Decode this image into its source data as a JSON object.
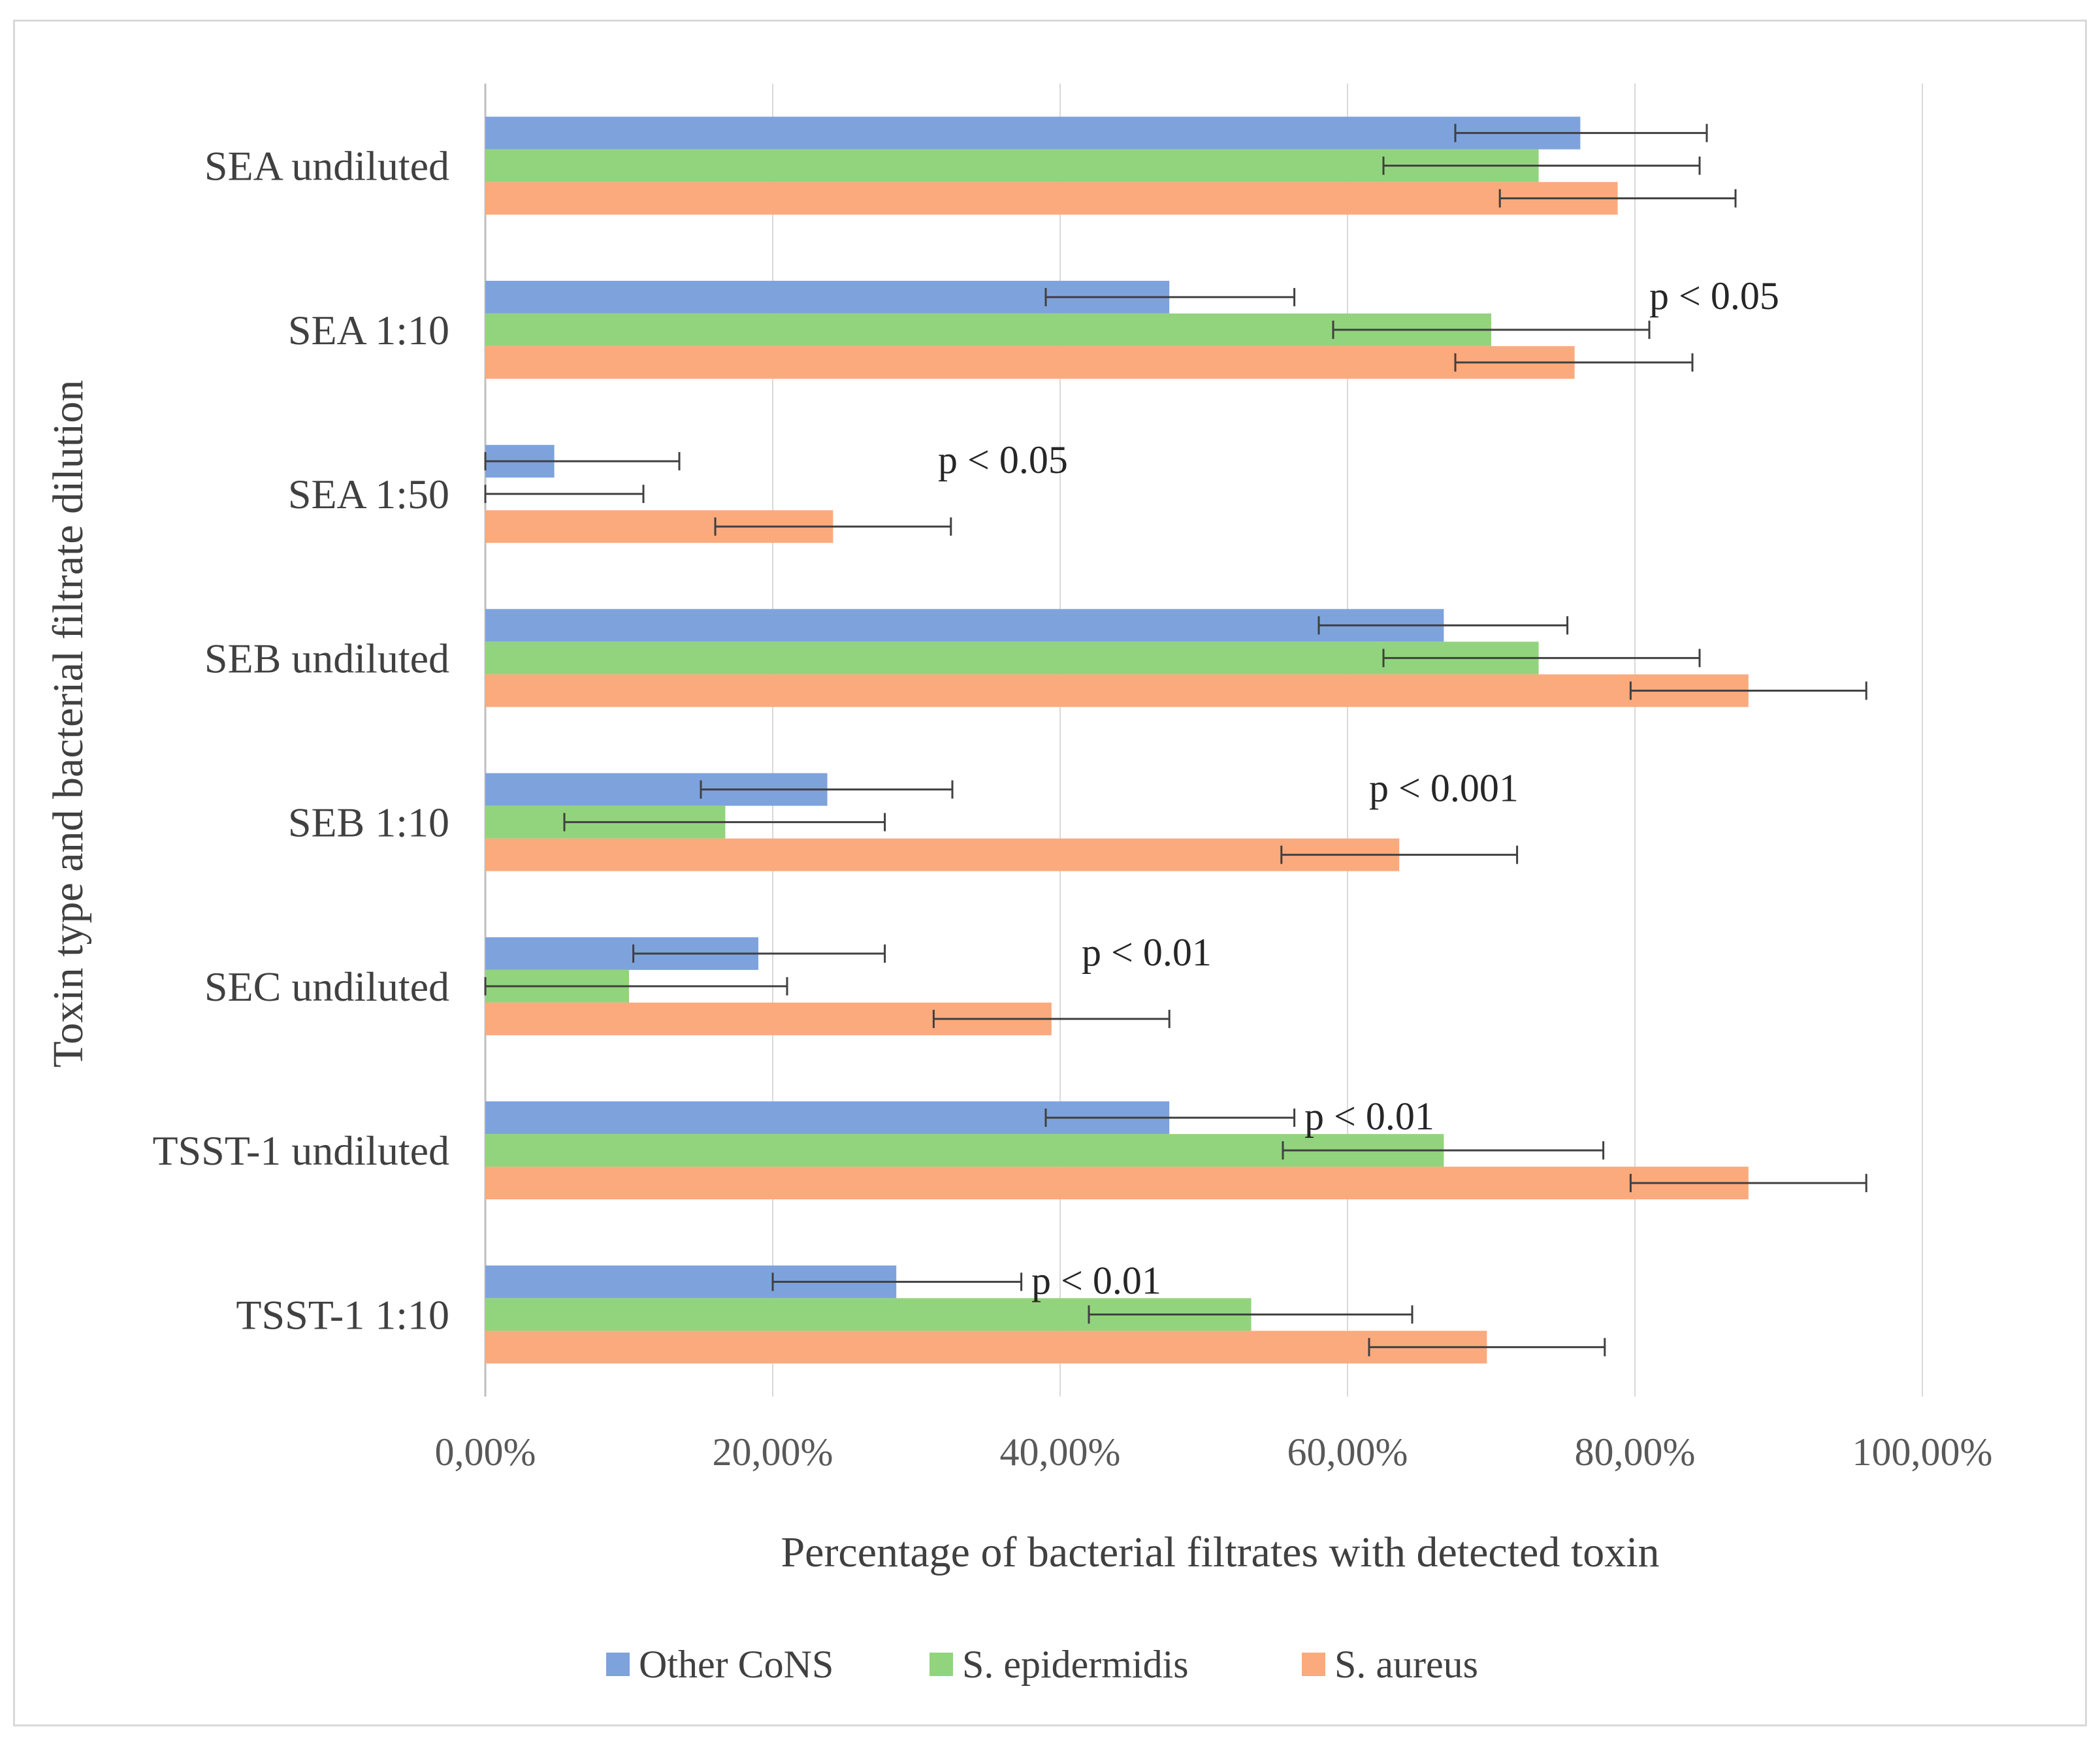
{
  "chart_data": {
    "type": "bar",
    "orientation": "horizontal",
    "categories": [
      "SEA undiluted",
      "SEA 1:10",
      "SEA 1:50",
      "SEB undiluted",
      "SEB 1:10",
      "SEC undiluted",
      "TSST-1 undiluted",
      "TSST-1 1:10"
    ],
    "series": [
      {
        "name": "Other CoNS",
        "color": "#7ea3dc",
        "values": [
          76.2,
          47.6,
          4.8,
          66.7,
          23.8,
          19.0,
          47.6,
          28.6
        ],
        "error_low": [
          67.5,
          39.0,
          0.0,
          58.0,
          15.0,
          10.3,
          39.0,
          20.0
        ],
        "error_high": [
          85.0,
          56.3,
          13.5,
          75.3,
          32.5,
          27.8,
          56.3,
          37.3
        ]
      },
      {
        "name": "S. epidermidis",
        "color": "#92d47d",
        "values": [
          73.3,
          70.0,
          0.0,
          73.3,
          16.7,
          10.0,
          66.7,
          53.3
        ],
        "error_low": [
          62.5,
          59.0,
          0.0,
          62.5,
          5.5,
          0.0,
          55.5,
          42.0
        ],
        "error_high": [
          84.5,
          81.0,
          11.0,
          84.5,
          27.8,
          21.0,
          77.8,
          64.5
        ]
      },
      {
        "name": "S. aureus",
        "color": "#fbaa7d",
        "values": [
          78.8,
          75.8,
          24.2,
          87.9,
          63.6,
          39.4,
          87.9,
          69.7
        ],
        "error_low": [
          70.6,
          67.5,
          16.0,
          79.7,
          55.4,
          31.2,
          79.7,
          61.5
        ],
        "error_high": [
          87.0,
          84.0,
          32.4,
          96.1,
          71.8,
          47.6,
          96.1,
          77.9
        ]
      }
    ],
    "xlim": [
      0,
      100
    ],
    "xticks": [
      "0,00%",
      "20,00%",
      "40,00%",
      "60,00%",
      "80,00%",
      "100,00%"
    ],
    "xlabel": "Percentage of bacterial filtrates with detected toxin",
    "ylabel": "Toxin type and bacterial filtrate dilution",
    "grid": true,
    "legend_position": "bottom",
    "annotations": [
      {
        "category_index": 1,
        "text": "p < 0.05",
        "x": 81.0
      },
      {
        "category_index": 2,
        "text": "p < 0.05",
        "x": 31.5
      },
      {
        "category_index": 4,
        "text": "p < 0.001",
        "x": 61.5
      },
      {
        "category_index": 5,
        "text": "p < 0.01",
        "x": 41.5
      },
      {
        "category_index": 6,
        "text": "p < 0.01",
        "x": 57.0
      },
      {
        "category_index": 7,
        "text": "p < 0.01",
        "x": 38.0
      }
    ]
  }
}
